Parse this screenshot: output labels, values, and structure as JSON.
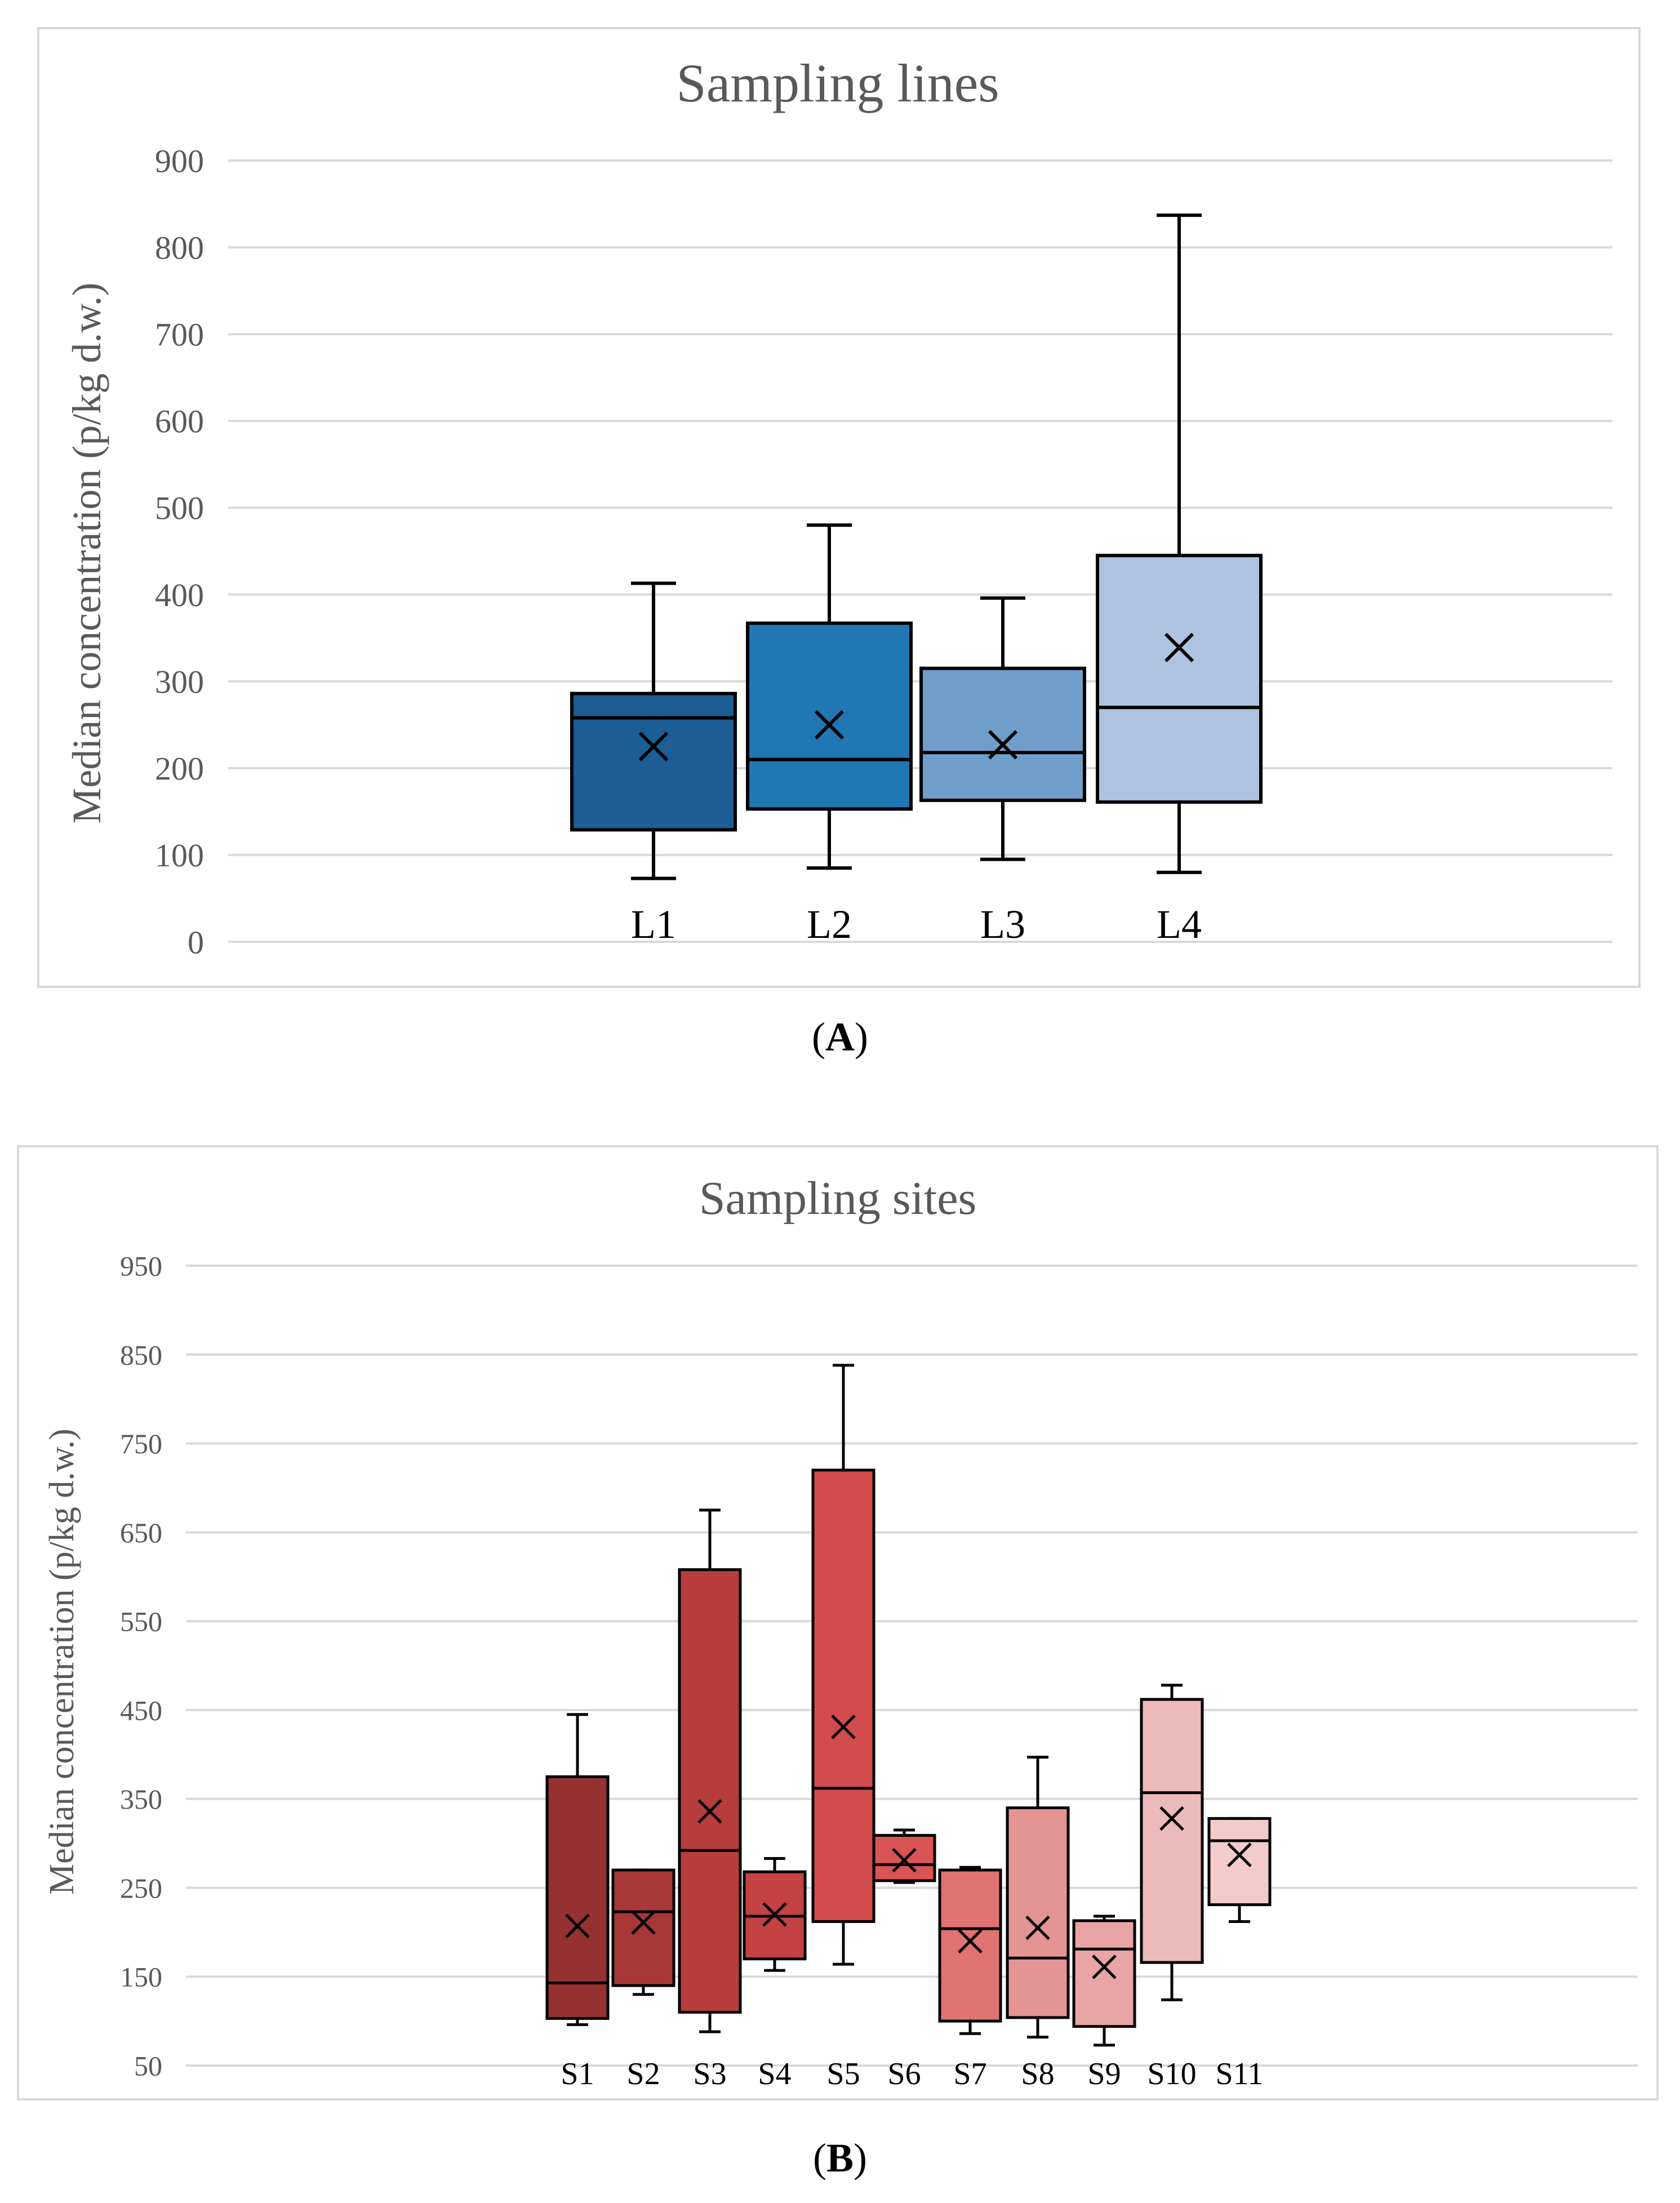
{
  "panels": [
    {
      "caption_letter": "A"
    },
    {
      "caption_letter": "B"
    }
  ],
  "colors": {
    "grid": "#d9d9d9",
    "frame": "#d9d9d9",
    "box_stroke": "#000000",
    "title_text": "#595959",
    "tick_text": "#595959"
  },
  "chart_data": [
    {
      "type": "box",
      "title": "Sampling lines",
      "xlabel": "",
      "ylabel": "Median concentration (p/kg d.w.)",
      "ylim": [
        0,
        900
      ],
      "yticks": [
        0,
        100,
        200,
        300,
        400,
        500,
        600,
        700,
        800,
        900
      ],
      "grid": true,
      "categories": [
        "L1",
        "L2",
        "L3",
        "L4"
      ],
      "boxes": [
        {
          "label": "L1",
          "min": 73,
          "q1": 129,
          "median": 258,
          "q3": 286,
          "max": 413,
          "mean": 225,
          "color": "#1b5d94"
        },
        {
          "label": "L2",
          "min": 85,
          "q1": 153,
          "median": 210,
          "q3": 367,
          "max": 480,
          "mean": 250,
          "color": "#2176b4"
        },
        {
          "label": "L3",
          "min": 95,
          "q1": 163,
          "median": 218,
          "q3": 315,
          "max": 396,
          "mean": 227,
          "color": "#6f9ecb"
        },
        {
          "label": "L4",
          "min": 80,
          "q1": 161,
          "median": 270,
          "q3": 445,
          "max": 837,
          "mean": 339,
          "color": "#adc3df"
        }
      ]
    },
    {
      "type": "box",
      "title": "Sampling sites",
      "xlabel": "",
      "ylabel": "Median concentration (p/kg d.w.)",
      "ylim": [
        50,
        950
      ],
      "yticks": [
        50,
        150,
        250,
        350,
        450,
        550,
        650,
        750,
        850,
        950
      ],
      "grid": true,
      "categories": [
        "S1",
        "S2",
        "S3",
        "S4",
        "S5",
        "S6",
        "S7",
        "S8",
        "S9",
        "S10",
        "S11"
      ],
      "boxes": [
        {
          "label": "S1",
          "min": 96,
          "q1": 103,
          "median": 143,
          "q3": 375,
          "max": 445,
          "mean": 207,
          "color": "#963131"
        },
        {
          "label": "S2",
          "min": 130,
          "q1": 140,
          "median": 223,
          "q3": 270,
          "max": 270,
          "mean": 211,
          "color": "#a83737"
        },
        {
          "label": "S3",
          "min": 88,
          "q1": 110,
          "median": 292,
          "q3": 608,
          "max": 675,
          "mean": 336,
          "color": "#b73c3c"
        },
        {
          "label": "S4",
          "min": 157,
          "q1": 170,
          "median": 218,
          "q3": 268,
          "max": 283,
          "mean": 220,
          "color": "#c44242"
        },
        {
          "label": "S5",
          "min": 164,
          "q1": 212,
          "median": 362,
          "q3": 720,
          "max": 838,
          "mean": 431,
          "color": "#d24b4b"
        },
        {
          "label": "S6",
          "min": 256,
          "q1": 258,
          "median": 276,
          "q3": 309,
          "max": 315,
          "mean": 281,
          "color": "#d95454"
        },
        {
          "label": "S7",
          "min": 86,
          "q1": 100,
          "median": 204,
          "q3": 270,
          "max": 273,
          "mean": 190,
          "color": "#e07272"
        },
        {
          "label": "S8",
          "min": 82,
          "q1": 104,
          "median": 171,
          "q3": 340,
          "max": 397,
          "mean": 205,
          "color": "#e59494"
        },
        {
          "label": "S9",
          "min": 73,
          "q1": 94,
          "median": 181,
          "q3": 213,
          "max": 218,
          "mean": 161,
          "color": "#e9a5a5"
        },
        {
          "label": "S10",
          "min": 124,
          "q1": 166,
          "median": 357,
          "q3": 462,
          "max": 478,
          "mean": 328,
          "color": "#edbaba"
        },
        {
          "label": "S11",
          "min": 212,
          "q1": 231,
          "median": 303,
          "q3": 328,
          "max": 328,
          "mean": 287,
          "color": "#f2cccc"
        }
      ]
    }
  ]
}
